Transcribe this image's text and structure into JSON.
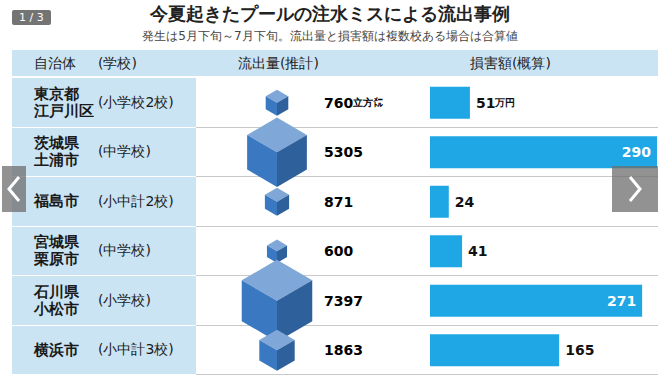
{
  "header": {
    "title": "今夏起きたプールの注水ミスによる流出事例",
    "subtitle": "発生は5月下旬～7月下旬。流出量と損害額は複数校ある場合は合算値",
    "pager": "1 / 3"
  },
  "table": {
    "headers": [
      "自治体",
      "(学校)",
      "流出量(推計)",
      "損害額(概算)"
    ],
    "rows": [
      {
        "municipality": [
          "東京都",
          "江戸川区"
        ],
        "school": "(小学校2校)"
      },
      {
        "municipality": [
          "茨城県",
          "土浦市"
        ],
        "school": "(中学校)"
      },
      {
        "municipality": [
          "福島市"
        ],
        "school": "(小中計2校)"
      },
      {
        "municipality": [
          "宮城県",
          "栗原市"
        ],
        "school": "(中学校)"
      },
      {
        "municipality": [
          "石川県",
          "小松市"
        ],
        "school": "(小学校)"
      },
      {
        "municipality": [
          "横浜市"
        ],
        "school": "(小中計3校)"
      }
    ]
  },
  "chart_data": [
    {
      "type": "scatter",
      "marker": "cube",
      "color": "#3a78c2",
      "values": [
        760,
        5305,
        871,
        600,
        7397,
        1863
      ],
      "value_labels": [
        "760立方㍍",
        "5305",
        "871",
        "600",
        "7397",
        "1863"
      ],
      "data_labels": true,
      "tick_labels": false
    },
    {
      "type": "bar",
      "orientation": "horizontal",
      "color": "#1ea7e4",
      "values": [
        51,
        290,
        24,
        41,
        271,
        165
      ],
      "value_labels": [
        "51万円",
        "290",
        "24",
        "41",
        "271",
        "165"
      ],
      "xlim": [
        0,
        290
      ],
      "data_labels": true,
      "tick_labels": false
    }
  ]
}
